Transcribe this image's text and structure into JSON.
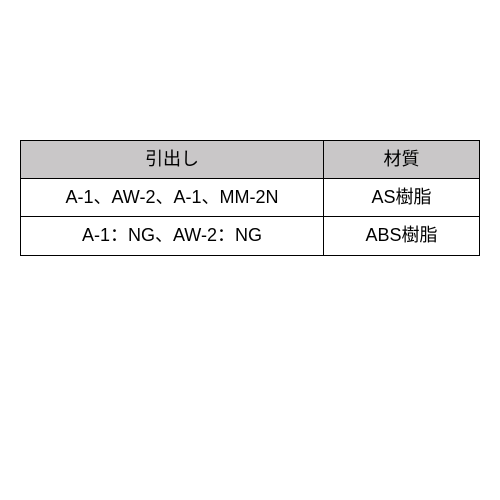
{
  "table": {
    "type": "table",
    "background_color": "#ffffff",
    "border_color": "#000000",
    "header_background": "#c9c7c8",
    "font_size_pt": 14,
    "columns": [
      {
        "label": "引出し",
        "width_pct": 66,
        "align": "center"
      },
      {
        "label": "材質",
        "width_pct": 34,
        "align": "center"
      }
    ],
    "rows": [
      {
        "drawer": "A-1、AW-2、A-1、MM-2N",
        "material": "AS樹脂"
      },
      {
        "drawer": "A-1：NG、AW-2：NG",
        "material": "ABS樹脂"
      }
    ]
  }
}
